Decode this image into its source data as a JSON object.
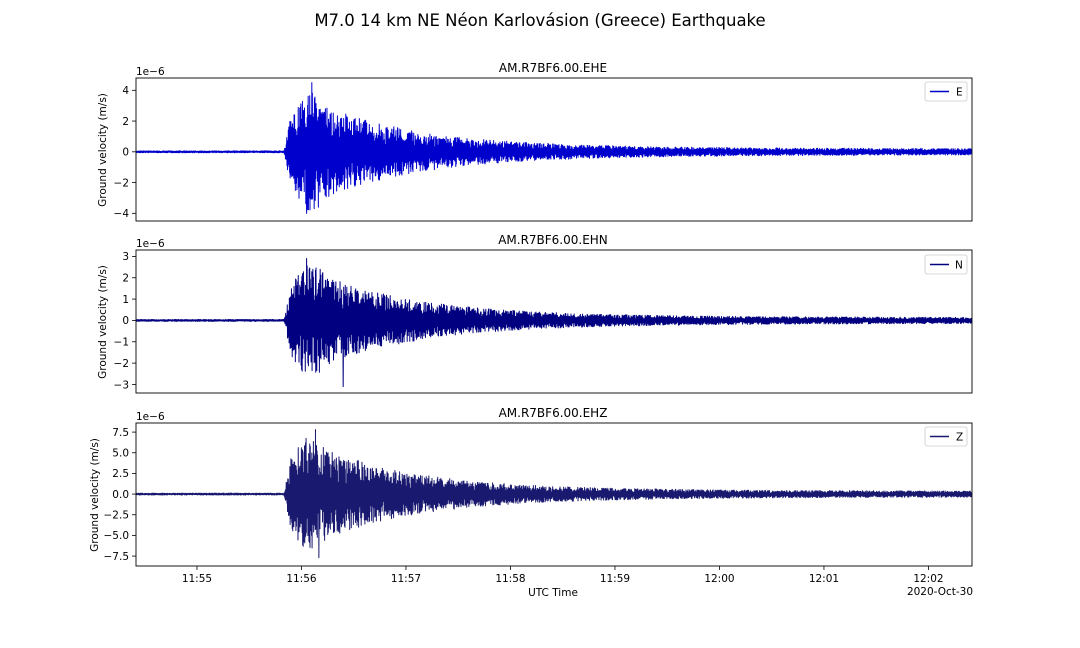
{
  "chart_data": {
    "type": "line",
    "title": "M7.0 14 km NE Néon Karlovásion (Greece) Earthquake",
    "xlabel": "UTC Time",
    "x_date_label": "2020-Oct-30",
    "x_start": "11:54:25",
    "x_end": "12:02:25",
    "x_ticks": [
      "11:55",
      "11:56",
      "11:57",
      "11:58",
      "11:59",
      "12:00",
      "12:01",
      "12:02"
    ],
    "grid": false,
    "subplots": [
      {
        "title": "AM.R7BF6.00.EHE",
        "ylabel": "Ground velocity (m/s)",
        "offset_text": "1e−6",
        "ylim": [
          -4.5,
          4.8
        ],
        "yticks": [
          -4,
          -2,
          0,
          2,
          4
        ],
        "ytick_labels": [
          "−4",
          "−2",
          "0",
          "2",
          "4"
        ],
        "legend": "top-right",
        "series": [
          {
            "name": "E",
            "color": "#0000cd",
            "peak": 4.5,
            "trough": -4.0
          }
        ]
      },
      {
        "title": "AM.R7BF6.00.EHN",
        "ylabel": "Ground velocity (m/s)",
        "offset_text": "1e−6",
        "ylim": [
          -3.4,
          3.3
        ],
        "yticks": [
          -3,
          -2,
          -1,
          0,
          1,
          2,
          3
        ],
        "ytick_labels": [
          "−3",
          "−2",
          "−1",
          "0",
          "1",
          "2",
          "3"
        ],
        "legend": "top-right",
        "series": [
          {
            "name": "N",
            "color": "#000080",
            "peak": 2.9,
            "trough": -3.1
          }
        ]
      },
      {
        "title": "AM.R7BF6.00.EHZ",
        "ylabel": "Ground velocity (m/s)",
        "offset_text": "1e−6",
        "ylim": [
          -8.7,
          8.6
        ],
        "yticks": [
          -7.5,
          -5.0,
          -2.5,
          0.0,
          2.5,
          5.0,
          7.5
        ],
        "ytick_labels": [
          "−7.5",
          "−5.0",
          "−2.5",
          "0.0",
          "2.5",
          "5.0",
          "7.5"
        ],
        "legend": "top-right",
        "series": [
          {
            "name": "Z",
            "color": "#191970",
            "peak": 7.8,
            "trough": -7.7
          }
        ]
      }
    ]
  }
}
